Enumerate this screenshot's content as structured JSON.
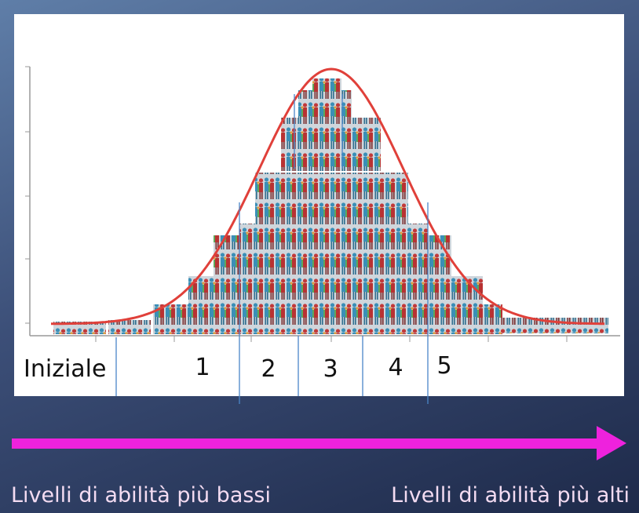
{
  "levels": [
    "Iniziale",
    "1",
    "2",
    "3",
    "4",
    "5"
  ],
  "arrow_left_label": "Livelli di abilità più bassi",
  "arrow_right_label": "Livelli di abilità più alti"
}
